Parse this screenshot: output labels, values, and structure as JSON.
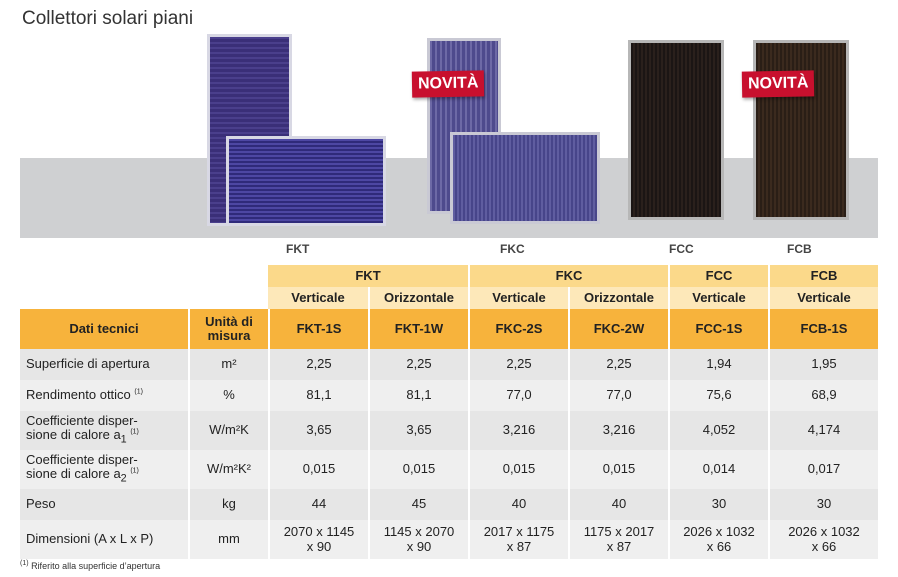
{
  "title": "Collettori solari piani",
  "badges": [
    "NOVITÀ",
    "NOVITÀ"
  ],
  "captions": [
    "FKT",
    "FKC",
    "FCC",
    "FCB"
  ],
  "colors": {
    "header_light": "#fbd98a",
    "header_mid": "#fde8b9",
    "header_dark": "#f7b33c",
    "row": "#e6e6e6",
    "badge": "#c8102e"
  },
  "table": {
    "groups": [
      "FKT",
      "FKC",
      "FCC",
      "FCB"
    ],
    "orientations": [
      "Verticale",
      "Orizzontale",
      "Verticale",
      "Orizzontale",
      "Verticale",
      "Verticale"
    ],
    "col_label": "Dati tecnici",
    "unit_label": "Unità di misura",
    "models": [
      "FKT-1S",
      "FKT-1W",
      "FKC-2S",
      "FKC-2W",
      "FCC-1S",
      "FCB-1S"
    ],
    "rows": [
      {
        "label": "Superficie di apertura",
        "unit": "m²",
        "values": [
          "2,25",
          "2,25",
          "2,25",
          "2,25",
          "1,94",
          "1,95"
        ]
      },
      {
        "label": "Rendimento ottico",
        "note": "(1)",
        "unit": "%",
        "values": [
          "81,1",
          "81,1",
          "77,0",
          "77,0",
          "75,6",
          "68,9"
        ]
      },
      {
        "label_line1": "Coefficiente disper-",
        "label_line2": "sione di calore a",
        "sub": "1",
        "note": "(1)",
        "unit": "W/m²K",
        "values": [
          "3,65",
          "3,65",
          "3,216",
          "3,216",
          "4,052",
          "4,174"
        ]
      },
      {
        "label_line1": "Coefficiente disper-",
        "label_line2": "sione di calore a",
        "sub": "2",
        "note": "(1)",
        "unit": "W/m²K²",
        "values": [
          "0,015",
          "0,015",
          "0,015",
          "0,015",
          "0,014",
          "0,017"
        ]
      },
      {
        "label": "Peso",
        "unit": "kg",
        "values": [
          "44",
          "45",
          "40",
          "40",
          "30",
          "30"
        ]
      },
      {
        "label": "Dimensioni (A x L x P)",
        "unit": "mm",
        "values_line1": [
          "2070 x 1145",
          "1145 x 2070",
          "2017 x 1175",
          "1175 x 2017",
          "2026 x 1032",
          "2026 x 1032"
        ],
        "values_line2": [
          "x 90",
          "x 90",
          "x 87",
          "x 87",
          "x 66",
          "x 66"
        ]
      }
    ]
  },
  "footnote": {
    "marker": "(1)",
    "text": " Riferito alla superficie d’apertura"
  }
}
